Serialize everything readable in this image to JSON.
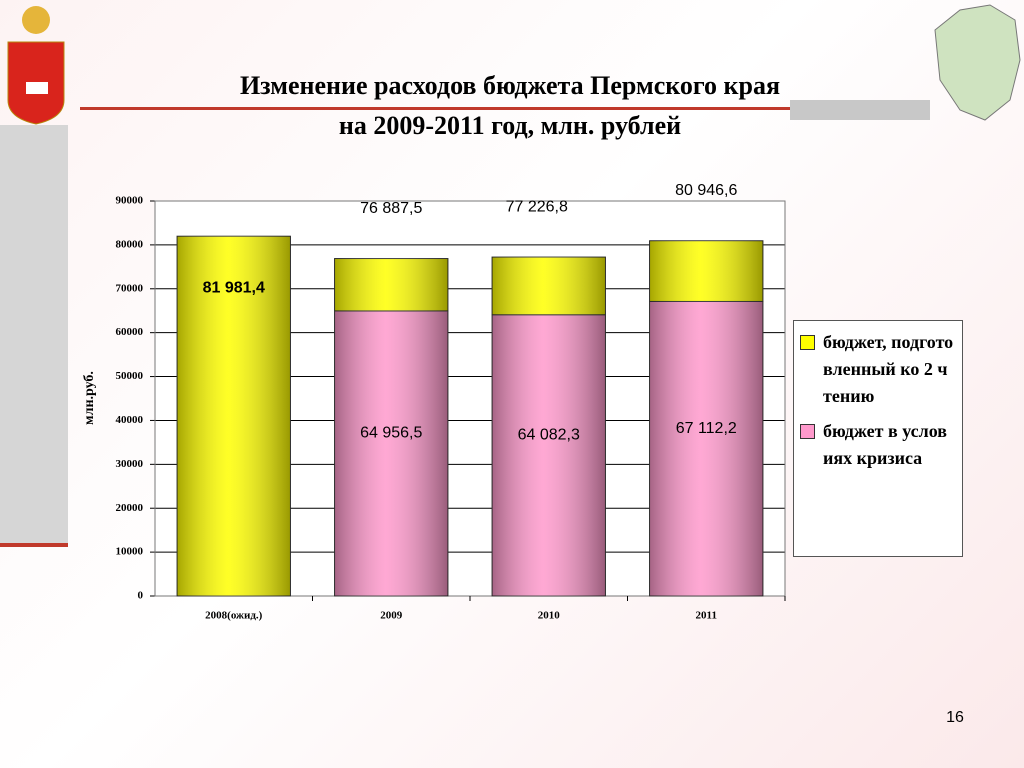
{
  "chart_data": {
    "type": "stacked_bar",
    "title": "Изменение расходов бюджета Пермского края",
    "subtitle": "на 2009-2011 год, млн. рублей",
    "ylabel": "млн.руб.",
    "categories": [
      "2008(ожид.)",
      "2009",
      "2010",
      "2011"
    ],
    "series": [
      {
        "name": "бюджет в условиях кризиса",
        "color": "#ff99cc",
        "values": [
          null,
          64956.5,
          64082.3,
          67112.2
        ],
        "value_labels": [
          null,
          "64 956,5",
          "64 082,3",
          "67 112,2"
        ]
      },
      {
        "name": "бюджет, подготовленный ко 2 чтению",
        "color": "#ffff00",
        "values": [
          81981.4,
          11931.0,
          13144.5,
          13834.4
        ],
        "value_labels": [
          "81 981,4",
          null,
          null,
          null
        ]
      }
    ],
    "totals": [
      null,
      76887.5,
      77226.8,
      80946.6
    ],
    "total_labels": [
      null,
      "76 887,5",
      "77 226,8",
      "80 946,6"
    ],
    "ylim": [
      0,
      90000
    ],
    "yticks": [
      0,
      10000,
      20000,
      30000,
      40000,
      50000,
      60000,
      70000,
      80000,
      90000
    ],
    "grid": true,
    "legend": "right"
  },
  "page_number": "16"
}
